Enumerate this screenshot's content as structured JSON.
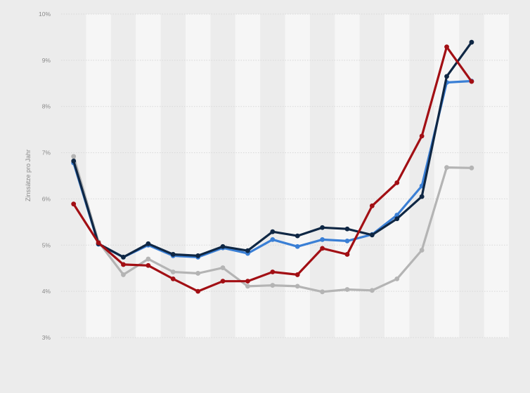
{
  "chart_data": {
    "type": "line",
    "title": "",
    "xlabel": "",
    "ylabel": "Zinssätze pro Jahr",
    "ylim": [
      3,
      10
    ],
    "y_ticks": [
      3,
      4,
      5,
      6,
      7,
      8,
      9,
      10
    ],
    "y_tick_labels": [
      "3%",
      "4%",
      "5%",
      "6%",
      "7%",
      "8%",
      "9%",
      "10%"
    ],
    "grid": true,
    "legend": "none",
    "x": [
      1,
      2,
      3,
      4,
      5,
      6,
      7,
      8,
      9,
      10,
      11,
      12,
      13,
      14,
      15,
      16,
      17,
      18
    ],
    "series": [
      {
        "color": "#3a7fd5",
        "values": [
          6.78,
          5.02,
          4.74,
          5.0,
          4.77,
          4.74,
          4.94,
          4.82,
          5.12,
          4.97,
          5.12,
          5.09,
          5.23,
          5.65,
          6.28,
          8.52,
          8.55,
          null
        ]
      },
      {
        "color": "#b4b4b4",
        "values": [
          6.92,
          5.07,
          4.36,
          4.7,
          4.42,
          4.39,
          4.51,
          4.11,
          4.13,
          4.11,
          3.99,
          4.04,
          4.02,
          4.27,
          4.89,
          6.68,
          6.67,
          null
        ]
      },
      {
        "color": "#0f2744",
        "values": [
          6.82,
          5.03,
          4.74,
          5.03,
          4.8,
          4.77,
          4.97,
          4.88,
          5.29,
          5.2,
          5.38,
          5.35,
          5.22,
          5.57,
          6.05,
          8.65,
          9.39,
          null
        ]
      },
      {
        "color": "#a20f14",
        "values": [
          5.89,
          5.05,
          4.58,
          4.56,
          4.27,
          4.0,
          4.22,
          4.22,
          4.42,
          4.36,
          4.93,
          4.8,
          5.85,
          6.35,
          7.36,
          9.29,
          8.54,
          null
        ]
      }
    ]
  },
  "style": {
    "background": "#ececec",
    "band_light": "#f6f6f6",
    "grid_color": "#d8d8d8",
    "text_color": "#8a8a8a"
  }
}
